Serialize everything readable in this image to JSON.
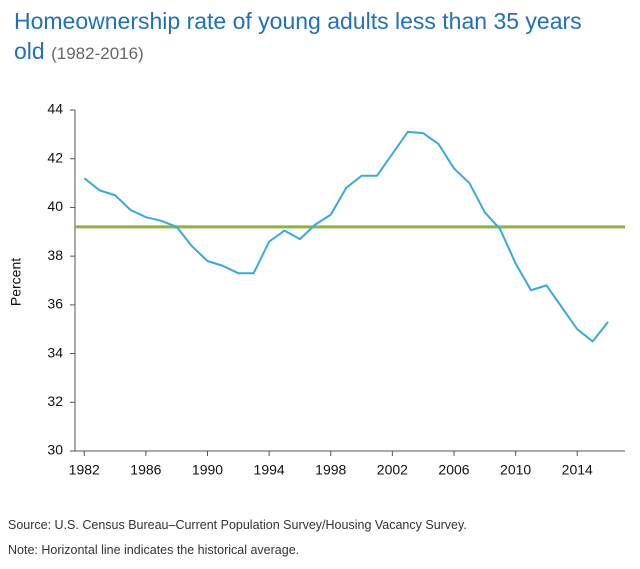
{
  "chart_data": {
    "type": "line",
    "title": "Homeownership rate of young adults less than 35 years old",
    "subtitle": "(1982-2016)",
    "y_label": "Percent",
    "source": "Source: U.S. Census Bureau–Current Population Survey/Housing Vacancy Survey.",
    "note": "Note: Horizontal line indicates the historical average.",
    "x": [
      1982,
      1983,
      1984,
      1985,
      1986,
      1987,
      1988,
      1989,
      1990,
      1991,
      1992,
      1993,
      1994,
      1995,
      1996,
      1997,
      1998,
      1999,
      2000,
      2001,
      2002,
      2003,
      2004,
      2005,
      2006,
      2007,
      2008,
      2009,
      2010,
      2011,
      2012,
      2013,
      2014,
      2015,
      2016
    ],
    "series": [
      {
        "name": "Homeownership rate",
        "color": "#3aa9df",
        "values": [
          41.2,
          40.7,
          40.5,
          39.9,
          39.6,
          39.45,
          39.2,
          38.4,
          37.8,
          37.6,
          37.3,
          37.3,
          38.6,
          39.05,
          38.7,
          39.3,
          39.7,
          40.8,
          41.3,
          41.3,
          42.2,
          43.1,
          43.05,
          42.6,
          41.6,
          41.0,
          39.8,
          39.1,
          37.7,
          36.6,
          36.8,
          35.9,
          35.0,
          34.5,
          35.3
        ]
      }
    ],
    "average": {
      "value": 39.2,
      "color": "#8cb43c"
    },
    "xlim": [
      1981.4,
      2017.1
    ],
    "xticks": [
      1982,
      1986,
      1990,
      1994,
      1998,
      2002,
      2006,
      2010,
      2014
    ],
    "ylim": [
      30,
      44
    ],
    "yticks": [
      30,
      32,
      34,
      36,
      38,
      40,
      42,
      44
    ],
    "grid": false
  }
}
